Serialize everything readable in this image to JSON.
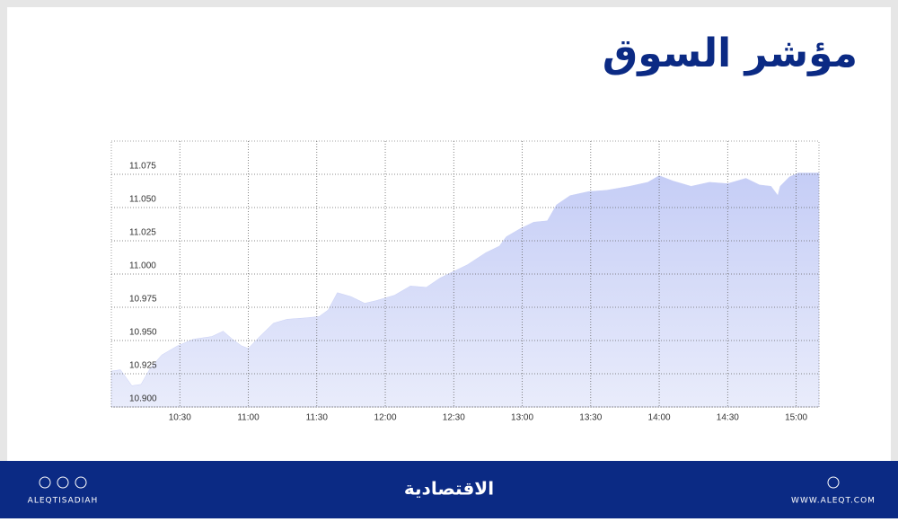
{
  "header": {
    "title": "مؤشر السوق"
  },
  "chart_data": {
    "type": "area",
    "color": "#c9d0f6",
    "x": [
      600,
      604,
      609,
      613,
      617,
      622,
      629,
      636,
      644,
      649,
      653,
      657,
      660,
      665,
      671,
      677,
      685,
      691,
      695,
      699,
      705,
      711,
      716,
      724,
      731,
      738,
      744,
      750,
      756,
      764,
      770,
      773,
      779,
      785,
      791,
      795,
      801,
      809,
      817,
      827,
      835,
      840,
      846,
      854,
      862,
      870,
      878,
      884,
      889,
      892,
      893,
      897,
      901,
      910
    ],
    "values": [
      10.927,
      10.928,
      10.916,
      10.917,
      10.929,
      10.939,
      10.946,
      10.951,
      10.953,
      10.957,
      10.951,
      10.946,
      10.944,
      10.953,
      10.963,
      10.966,
      10.967,
      10.968,
      10.973,
      10.986,
      10.983,
      10.978,
      10.98,
      10.984,
      10.991,
      10.99,
      10.997,
      11.002,
      11.007,
      11.016,
      11.021,
      11.028,
      11.034,
      11.039,
      11.04,
      11.052,
      11.059,
      11.062,
      11.063,
      11.066,
      11.069,
      11.074,
      11.07,
      11.066,
      11.069,
      11.068,
      11.072,
      11.067,
      11.066,
      11.059,
      11.066,
      11.073,
      11.076,
      11.076
    ],
    "xlim": [
      600,
      910
    ],
    "xticks": [
      {
        "value": 630,
        "label": "10:30"
      },
      {
        "value": 660,
        "label": "11:00"
      },
      {
        "value": 690,
        "label": "11:30"
      },
      {
        "value": 720,
        "label": "12:00"
      },
      {
        "value": 750,
        "label": "12:30"
      },
      {
        "value": 780,
        "label": "13:00"
      },
      {
        "value": 810,
        "label": "13:30"
      },
      {
        "value": 840,
        "label": "14:00"
      },
      {
        "value": 870,
        "label": "14:30"
      },
      {
        "value": 900,
        "label": "15:00"
      }
    ],
    "ylim": [
      10.9,
      11.1
    ],
    "yticks": [
      {
        "value": 10.9,
        "label": "10.900"
      },
      10.925,
      {
        "value": 10.95,
        "label": "10.950"
      },
      10.975,
      {
        "value": 11,
        "label": "11.000"
      },
      11.025,
      {
        "value": 11.05,
        "label": "11.050"
      },
      11.075
    ],
    "grid": true
  },
  "footer": {
    "handle": "ALEQTISADIAH",
    "brand": "الاقتصادية",
    "url": "WWW.ALEQT.COM"
  }
}
